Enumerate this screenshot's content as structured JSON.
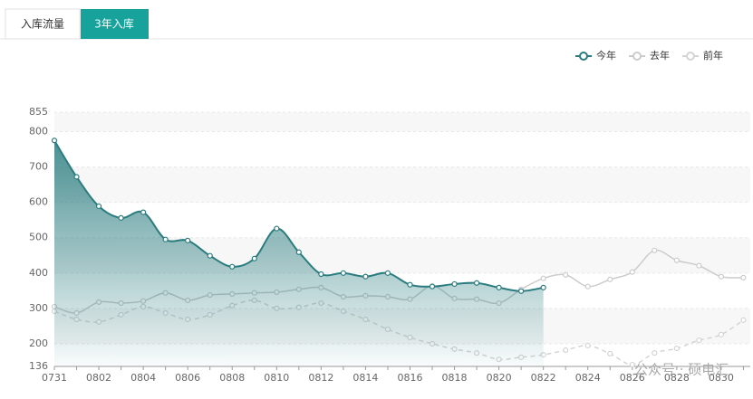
{
  "tabs": [
    "入库流量",
    "3年入库"
  ],
  "watermark": "公众号 · 硕电汇",
  "chart_data": {
    "type": "line",
    "categories": [
      "0731",
      null,
      "0802",
      null,
      "0804",
      null,
      "0806",
      null,
      "0808",
      null,
      "0810",
      null,
      "0812",
      null,
      "0814",
      null,
      "0816",
      null,
      "0818",
      null,
      "0820",
      null,
      "0822",
      null,
      "0824",
      null,
      "0826",
      null,
      "0828",
      null,
      "0830",
      null
    ],
    "series": [
      {
        "name": "今年",
        "color": "#2a7c7f",
        "area": true,
        "dash": false,
        "values": [
          775,
          672,
          589,
          556,
          572,
          495,
          492,
          449,
          418,
          441,
          526,
          459,
          397,
          400,
          390,
          400,
          367,
          362,
          369,
          372,
          359,
          349,
          359,
          null,
          null,
          null,
          null,
          null,
          null,
          null,
          null,
          null
        ]
      },
      {
        "name": "去年",
        "color": "#cccccc",
        "area": false,
        "dash": false,
        "values": [
          305,
          287,
          318,
          315,
          321,
          344,
          323,
          338,
          341,
          344,
          346,
          354,
          359,
          333,
          336,
          333,
          326,
          364,
          328,
          326,
          315,
          354,
          385,
          395,
          362,
          382,
          403,
          464,
          436,
          421,
          390,
          387
        ]
      },
      {
        "name": "前年",
        "color": "#d4d4d4",
        "area": false,
        "dash": true,
        "values": [
          292,
          269,
          262,
          282,
          305,
          287,
          269,
          282,
          308,
          323,
          300,
          303,
          315,
          292,
          269,
          241,
          218,
          200,
          185,
          174,
          156,
          162,
          169,
          182,
          195,
          172,
          141,
          174,
          187,
          210,
          226,
          267
        ]
      }
    ],
    "ylim": [
      136,
      855
    ],
    "yticks": [
      136,
      200,
      300,
      400,
      500,
      600,
      700,
      800,
      855
    ],
    "grid": true,
    "legend": "top-right"
  }
}
